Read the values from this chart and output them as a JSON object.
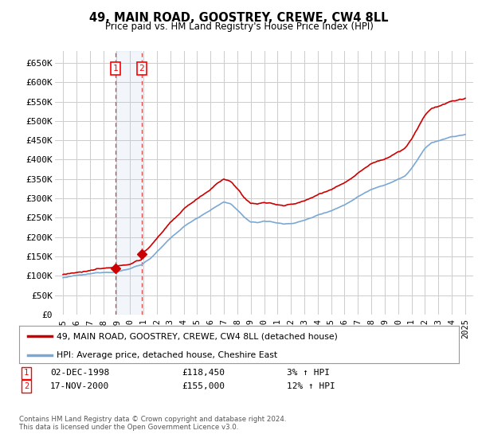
{
  "title": "49, MAIN ROAD, GOOSTREY, CREWE, CW4 8LL",
  "subtitle": "Price paid vs. HM Land Registry's House Price Index (HPI)",
  "ylabel_ticks": [
    "£0",
    "£50K",
    "£100K",
    "£150K",
    "£200K",
    "£250K",
    "£300K",
    "£350K",
    "£400K",
    "£450K",
    "£500K",
    "£550K",
    "£600K",
    "£650K"
  ],
  "ytick_values": [
    0,
    50000,
    100000,
    150000,
    200000,
    250000,
    300000,
    350000,
    400000,
    450000,
    500000,
    550000,
    600000,
    650000
  ],
  "ylim": [
    0,
    680000
  ],
  "hpi_line_color": "#7aa8d4",
  "price_line_color": "#cc0000",
  "marker_color": "#cc0000",
  "transaction1": {
    "label": "1",
    "date": "02-DEC-1998",
    "price": 118450,
    "note": "3% ↑ HPI",
    "year": 1998.917
  },
  "transaction2": {
    "label": "2",
    "date": "17-NOV-2000",
    "price": 155000,
    "note": "12% ↑ HPI",
    "year": 2000.875
  },
  "legend_line1": "49, MAIN ROAD, GOOSTREY, CREWE, CW4 8LL (detached house)",
  "legend_line2": "HPI: Average price, detached house, Cheshire East",
  "footer": "Contains HM Land Registry data © Crown copyright and database right 2024.\nThis data is licensed under the Open Government Licence v3.0.",
  "background_color": "#ffffff",
  "plot_bg_color": "#ffffff",
  "grid_color": "#cccccc",
  "shading_color": "#ddeeff"
}
